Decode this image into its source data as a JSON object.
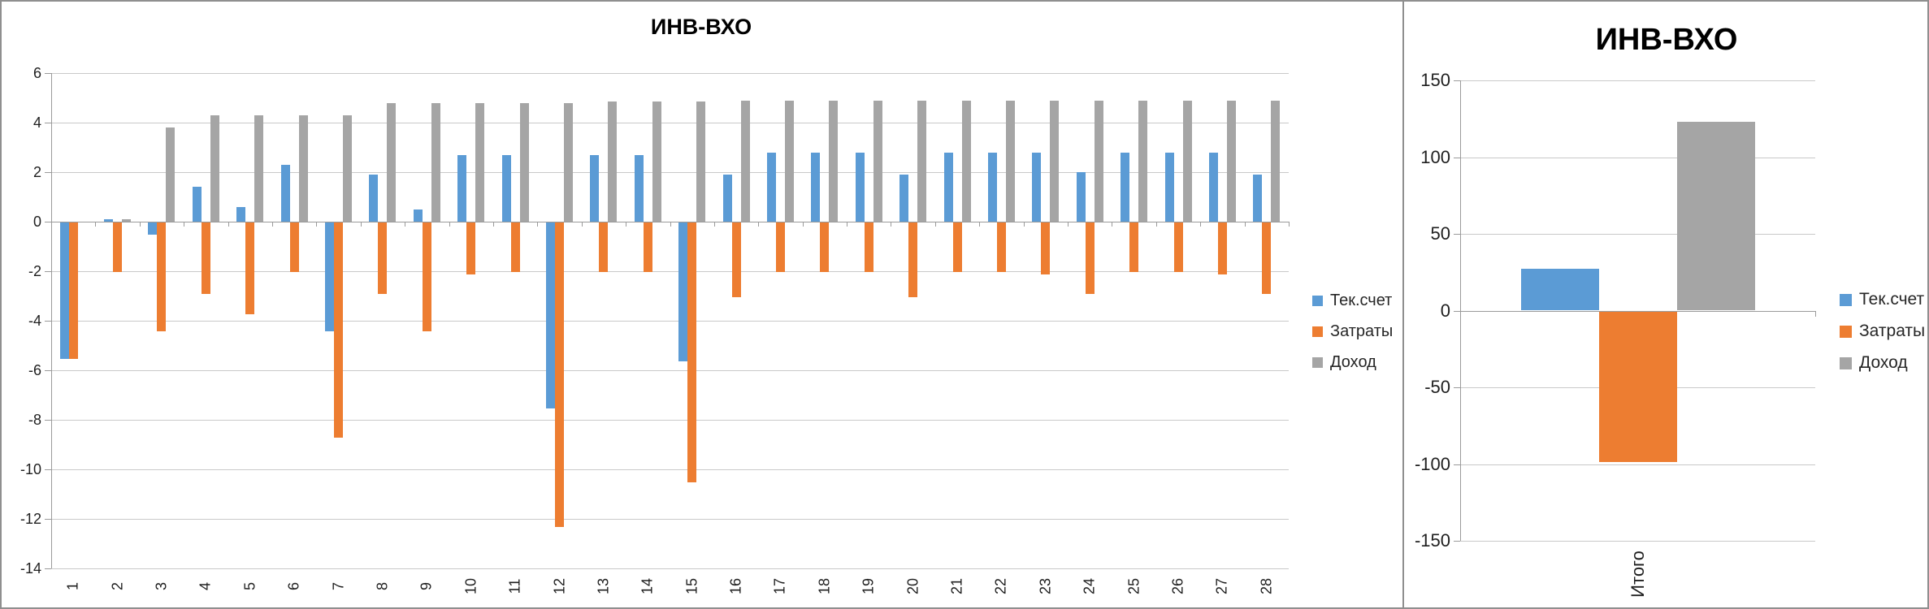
{
  "window": {
    "background": "#ffffff",
    "divider_color": "#8f8f8f"
  },
  "colors": {
    "tek_schet": "#5B9BD5",
    "zatraty": "#ED7D31",
    "dokhod": "#A5A5A5",
    "gridline": "#c9c9c9",
    "axis": "#9a9a9a",
    "text": "#1f1f1f",
    "title": "#000000",
    "border": "#8f8f8f"
  },
  "chart_data": [
    {
      "type": "bar",
      "title": "ИНВ-ВХО",
      "categories": [
        "1",
        "2",
        "3",
        "4",
        "5",
        "6",
        "7",
        "8",
        "9",
        "10",
        "11",
        "12",
        "13",
        "14",
        "15",
        "16",
        "17",
        "18",
        "19",
        "20",
        "21",
        "22",
        "23",
        "24",
        "25",
        "26",
        "27",
        "28"
      ],
      "series": [
        {
          "name": "Тек.счет",
          "slug": "tek-schet",
          "color": "#5B9BD5",
          "values": [
            -5.5,
            0.1,
            -0.5,
            1.4,
            0.6,
            2.3,
            -4.4,
            1.9,
            0.5,
            2.7,
            2.7,
            -7.5,
            2.7,
            2.7,
            -5.6,
            1.9,
            2.8,
            2.8,
            2.8,
            1.9,
            2.8,
            2.8,
            2.8,
            2.0,
            2.8,
            2.8,
            2.8,
            1.9
          ]
        },
        {
          "name": "Затраты",
          "slug": "zatraty",
          "color": "#ED7D31",
          "values": [
            -5.5,
            -2.0,
            -4.4,
            -2.9,
            -3.7,
            -2.0,
            -8.7,
            -2.9,
            -4.4,
            -2.1,
            -2.0,
            -12.3,
            -2.0,
            -2.0,
            -10.5,
            -3.0,
            -2.0,
            -2.0,
            -2.0,
            -3.0,
            -2.0,
            -2.0,
            -2.1,
            -2.9,
            -2.0,
            -2.0,
            -2.1,
            -2.9
          ]
        },
        {
          "name": "Доход",
          "slug": "dokhod",
          "color": "#A5A5A5",
          "values": [
            0,
            0.1,
            3.8,
            4.3,
            4.3,
            4.3,
            4.3,
            4.8,
            4.8,
            4.8,
            4.8,
            4.8,
            4.85,
            4.85,
            4.85,
            4.9,
            4.9,
            4.9,
            4.9,
            4.9,
            4.9,
            4.9,
            4.9,
            4.9,
            4.9,
            4.9,
            4.9,
            4.9
          ]
        }
      ],
      "ylim": [
        -14,
        6
      ],
      "ytick_step": 2,
      "yticks": [
        "6",
        "4",
        "2",
        "0",
        "-2",
        "-4",
        "-6",
        "-8",
        "-10",
        "-12",
        "-14"
      ],
      "grid": true,
      "legend_position": "right",
      "xlabel": "",
      "ylabel": ""
    },
    {
      "type": "bar",
      "title": "ИНВ-ВХО",
      "categories": [
        "Итого"
      ],
      "series": [
        {
          "name": "Тек.счет",
          "slug": "tek-schet",
          "color": "#5B9BD5",
          "values": [
            27
          ]
        },
        {
          "name": "Затраты",
          "slug": "zatraty",
          "color": "#ED7D31",
          "values": [
            -98
          ]
        },
        {
          "name": "Доход",
          "slug": "dokhod",
          "color": "#A5A5A5",
          "values": [
            123
          ]
        }
      ],
      "ylim": [
        -150,
        150
      ],
      "ytick_step": 50,
      "yticks": [
        "150",
        "100",
        "50",
        "0",
        "-50",
        "-100",
        "-150"
      ],
      "grid": true,
      "legend_position": "right",
      "xlabel": "",
      "ylabel": ""
    }
  ]
}
